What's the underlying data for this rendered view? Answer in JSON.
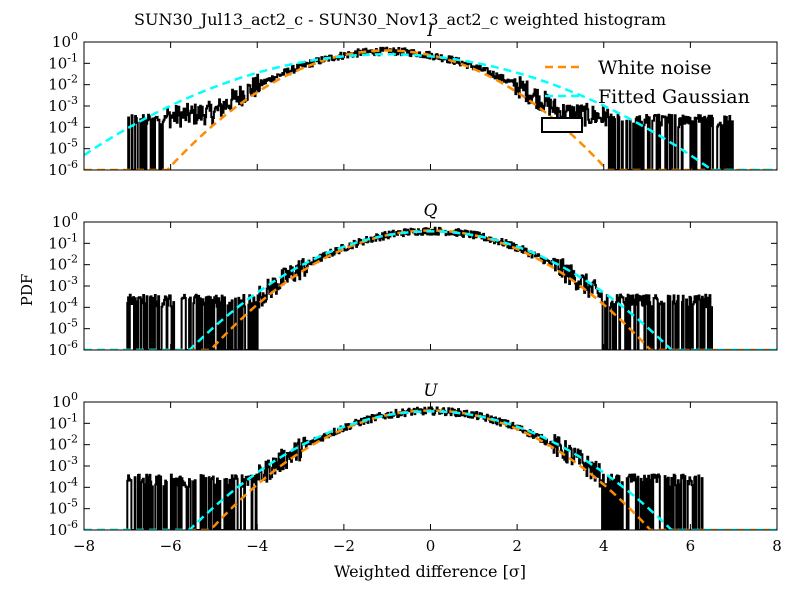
{
  "figure_title": "SUN30_Jul13_act2_c - SUN30_Nov13_act2_c weighted histogram",
  "ylabel": "PDF",
  "xlabel": "Weighted difference [σ]",
  "legend": {
    "white_noise": "White noise",
    "fitted_gaussian": "Fitted Gaussian"
  },
  "colors": {
    "histogram": "#000000",
    "white_noise": "#FF8C00",
    "fitted_gaussian": "#00FFFF"
  },
  "x_ticks": [
    "−8",
    "−6",
    "−4",
    "−2",
    "0",
    "2",
    "4",
    "6",
    "8"
  ],
  "y_ticks": [
    {
      "base": "10",
      "exp": "0"
    },
    {
      "base": "10",
      "exp": "-1"
    },
    {
      "base": "10",
      "exp": "-2"
    },
    {
      "base": "10",
      "exp": "-3"
    },
    {
      "base": "10",
      "exp": "-4"
    },
    {
      "base": "10",
      "exp": "-5"
    },
    {
      "base": "10",
      "exp": "-6"
    }
  ],
  "chart_data": [
    {
      "type": "line",
      "title": "I",
      "xlim": [
        -8,
        8
      ],
      "ylim": [
        1e-06,
        1
      ],
      "yscale": "log",
      "histogram_range": [
        -7.0,
        7.0
      ],
      "histogram_mean": -1.0,
      "histogram_sigma": 1.1,
      "histogram_tail_floor": 0.003,
      "white_noise": {
        "mean": -1.0,
        "sigma": 1.0
      },
      "fitted_gaussian": {
        "mean": -1.0,
        "sigma": 1.5
      },
      "legend_position": "upper right"
    },
    {
      "type": "line",
      "title": "Q",
      "xlim": [
        -8,
        8
      ],
      "ylim": [
        1e-06,
        1
      ],
      "yscale": "log",
      "histogram_range": [
        -7.0,
        6.5
      ],
      "histogram_mean": 0.0,
      "histogram_sigma": 1.05,
      "white_noise": {
        "mean": 0.0,
        "sigma": 1.0
      },
      "fitted_gaussian": {
        "mean": 0.0,
        "sigma": 1.1
      }
    },
    {
      "type": "line",
      "title": "U",
      "xlim": [
        -8,
        8
      ],
      "ylim": [
        1e-06,
        1
      ],
      "yscale": "log",
      "histogram_range": [
        -7.0,
        6.3
      ],
      "histogram_mean": 0.0,
      "histogram_sigma": 1.05,
      "white_noise": {
        "mean": 0.0,
        "sigma": 1.0
      },
      "fitted_gaussian": {
        "mean": 0.0,
        "sigma": 1.1
      }
    }
  ]
}
